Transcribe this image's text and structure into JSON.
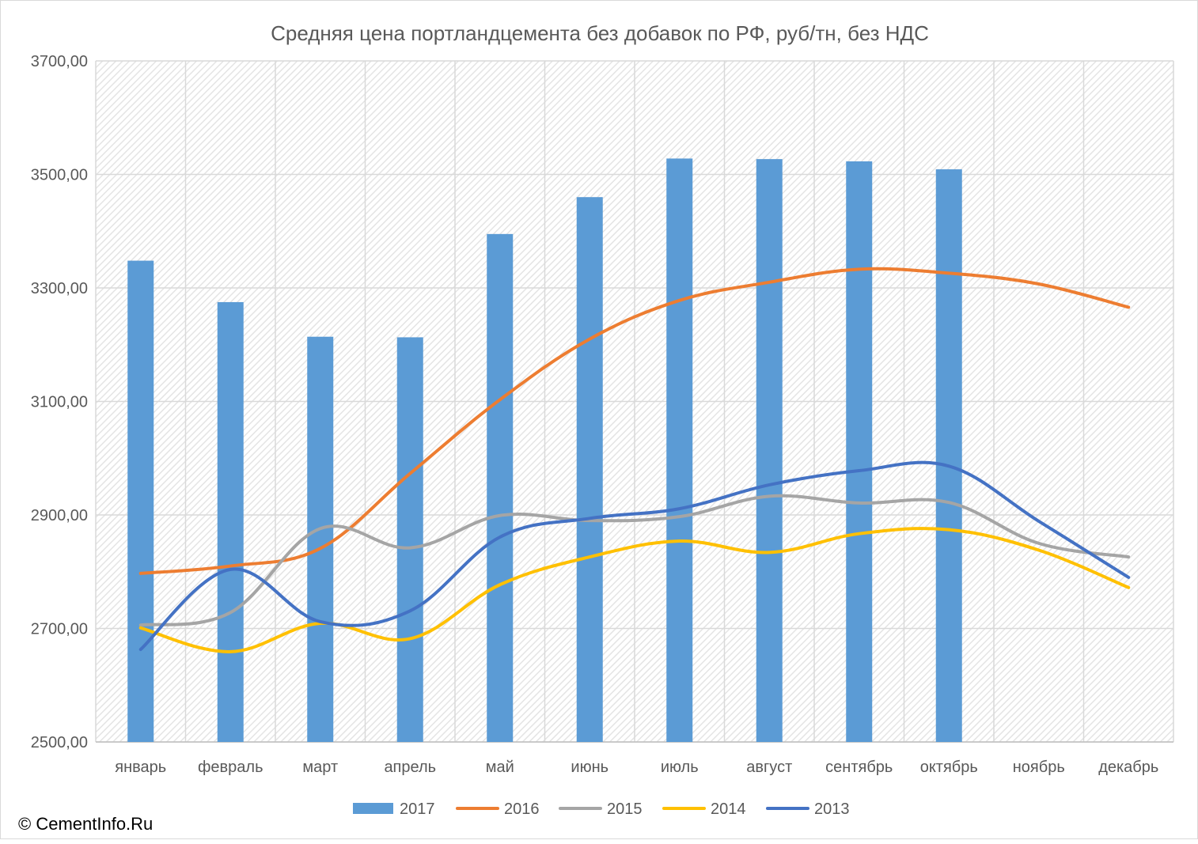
{
  "chart_data": {
    "type": "bar",
    "title": "Средняя цена портландцемента без добавок по РФ, руб/тн, без НДС",
    "categories": [
      "январь",
      "февраль",
      "март",
      "апрель",
      "май",
      "июнь",
      "июль",
      "август",
      "сентябрь",
      "октябрь",
      "ноябрь",
      "декабрь"
    ],
    "ylim": [
      2500,
      3700
    ],
    "yticks": [
      "2500,00",
      "2700,00",
      "2900,00",
      "3100,00",
      "3300,00",
      "3500,00",
      "3700,00"
    ],
    "ytick_values": [
      2500,
      2700,
      2900,
      3100,
      3300,
      3500,
      3700
    ],
    "grid": true,
    "legend_position": "bottom",
    "bar_series": {
      "name": "2017",
      "color": "#5b9bd5",
      "values": [
        3348,
        3275,
        3214,
        3213,
        3395,
        3460,
        3528,
        3527,
        3523,
        3509,
        null,
        null
      ]
    },
    "series": [
      {
        "name": "2016",
        "type": "line",
        "color": "#ed7d31",
        "values": [
          2797,
          2810,
          2841,
          2973,
          3103,
          3210,
          3278,
          3310,
          3333,
          3326,
          3307,
          3266
        ]
      },
      {
        "name": "2015",
        "type": "line",
        "color": "#a5a5a5",
        "values": [
          2706,
          2728,
          2876,
          2842,
          2899,
          2890,
          2897,
          2933,
          2921,
          2922,
          2850,
          2826
        ]
      },
      {
        "name": "2014",
        "type": "line",
        "color": "#ffc000",
        "values": [
          2701,
          2659,
          2709,
          2682,
          2777,
          2826,
          2854,
          2834,
          2867,
          2874,
          2838,
          2772
        ]
      },
      {
        "name": "2013",
        "type": "line",
        "color": "#4472c4",
        "values": [
          2663,
          2804,
          2712,
          2731,
          2861,
          2894,
          2911,
          2953,
          2978,
          2986,
          2889,
          2790
        ]
      }
    ]
  },
  "legend": [
    {
      "label": "2017",
      "kind": "bar",
      "color": "#5b9bd5"
    },
    {
      "label": "2016",
      "kind": "line",
      "color": "#ed7d31"
    },
    {
      "label": "2015",
      "kind": "line",
      "color": "#a5a5a5"
    },
    {
      "label": "2014",
      "kind": "line",
      "color": "#ffc000"
    },
    {
      "label": "2013",
      "kind": "line",
      "color": "#4472c4"
    }
  ],
  "copyright": "© CementInfo.Ru"
}
